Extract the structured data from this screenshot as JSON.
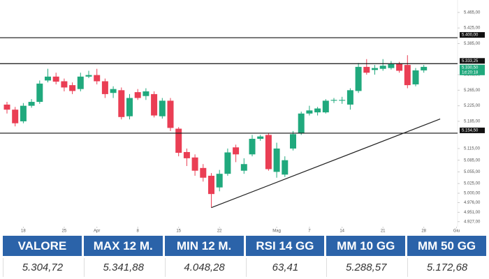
{
  "chart_data": {
    "type": "candlestick",
    "open": [
      5228,
      5215,
      5185,
      5225,
      5235,
      5290,
      5300,
      5288,
      5278,
      5268,
      5300,
      5304,
      5288,
      5258,
      5265,
      5198,
      5260,
      5250,
      5255,
      5198,
      5238,
      5166,
      5106,
      5092,
      5065,
      5045,
      5015,
      5050,
      5118,
      5058,
      5100,
      5140,
      5150,
      5055,
      5048,
      5115,
      5155,
      5205,
      5208,
      5208,
      5238,
      5238,
      5228,
      5263,
      5325,
      5317,
      5320,
      5322,
      5333,
      5330,
      5280,
      5316
    ],
    "close": [
      5215,
      5180,
      5225,
      5235,
      5282,
      5300,
      5287,
      5272,
      5263,
      5300,
      5304,
      5288,
      5255,
      5268,
      5196,
      5245,
      5245,
      5262,
      5200,
      5238,
      5168,
      5104,
      5090,
      5058,
      5040,
      4998,
      5050,
      5105,
      5100,
      5075,
      5140,
      5146,
      5062,
      5115,
      5085,
      5152,
      5205,
      5213,
      5218,
      5238,
      5240,
      5240,
      5265,
      5325,
      5310,
      5322,
      5328,
      5332,
      5315,
      5278,
      5316,
      5325
    ],
    "high": [
      5235,
      5222,
      5232,
      5242,
      5290,
      5320,
      5310,
      5295,
      5285,
      5310,
      5315,
      5320,
      5295,
      5275,
      5272,
      5255,
      5268,
      5270,
      5262,
      5245,
      5245,
      5170,
      5115,
      5100,
      5075,
      5052,
      5060,
      5115,
      5125,
      5090,
      5150,
      5150,
      5155,
      5130,
      5095,
      5160,
      5210,
      5225,
      5222,
      5242,
      5245,
      5248,
      5270,
      5335,
      5345,
      5330,
      5345,
      5340,
      5338,
      5355,
      5322,
      5330
    ],
    "low": [
      5205,
      5172,
      5180,
      5220,
      5230,
      5285,
      5280,
      5262,
      5255,
      5262,
      5296,
      5280,
      5245,
      5245,
      5190,
      5190,
      5240,
      5240,
      5195,
      5192,
      5160,
      5095,
      5070,
      5045,
      5030,
      4963,
      5005,
      5045,
      5080,
      5050,
      5095,
      5135,
      5058,
      5040,
      5042,
      5110,
      5150,
      5200,
      5200,
      5205,
      5232,
      5230,
      5215,
      5258,
      5305,
      5305,
      5315,
      5318,
      5310,
      5270,
      5275,
      5310
    ],
    "up_color": "#20a97d",
    "down_color": "#ea3e54",
    "ylim": [
      4914,
      5497
    ],
    "yticks": [
      {
        "value": 5465,
        "label": "5.465,00"
      },
      {
        "value": 5425,
        "label": "5.425,00"
      },
      {
        "value": 5385,
        "label": "5.385,00"
      },
      {
        "value": 5305,
        "label": "5.305,00"
      },
      {
        "value": 5265,
        "label": "5.265,00"
      },
      {
        "value": 5225,
        "label": "5.225,00"
      },
      {
        "value": 5185,
        "label": "5.185,00"
      },
      {
        "value": 5115,
        "label": "5.115,00"
      },
      {
        "value": 5085,
        "label": "5.085,00"
      },
      {
        "value": 5055,
        "label": "5.055,00"
      },
      {
        "value": 5025,
        "label": "5.025,00"
      },
      {
        "value": 5000,
        "label": "5.000,00"
      },
      {
        "value": 4976,
        "label": "4.976,00"
      },
      {
        "value": 4951,
        "label": "4.951,00"
      },
      {
        "value": 4927,
        "label": "4.927,00"
      }
    ],
    "xticks": [
      {
        "value": 2,
        "label": "18"
      },
      {
        "value": 7,
        "label": "25"
      },
      {
        "value": 11,
        "label": "Apr"
      },
      {
        "value": 16,
        "label": "8"
      },
      {
        "value": 21,
        "label": "15"
      },
      {
        "value": 26,
        "label": "22"
      },
      {
        "value": 33,
        "label": "Mag"
      },
      {
        "value": 37,
        "label": "7"
      },
      {
        "value": 41,
        "label": "14"
      },
      {
        "value": 46,
        "label": "21"
      },
      {
        "value": 51,
        "label": "28"
      },
      {
        "value": 55,
        "label": "Giu"
      }
    ],
    "levels": [
      {
        "value": 5400,
        "label": "5.400,00"
      },
      {
        "value": 5333.25,
        "label": "5.333,25"
      },
      {
        "value": 5154.5,
        "label": "5.154,50"
      }
    ],
    "last_price": {
      "value": 5330.5,
      "label": "5.330,50",
      "countdown": "1d:20:18"
    },
    "trendline": {
      "x": [
        25,
        53
      ],
      "y": [
        4963,
        5191
      ]
    }
  },
  "table": {
    "header": [
      "VALORE",
      "MAX 12 M.",
      "MIN 12 M.",
      "RSI 14 GG",
      "MM 10 GG",
      "MM 50 GG"
    ],
    "values": [
      "5.304,72",
      "5.341,88",
      "4.048,28",
      "63,41",
      "5.288,57",
      "5.172,68"
    ]
  }
}
